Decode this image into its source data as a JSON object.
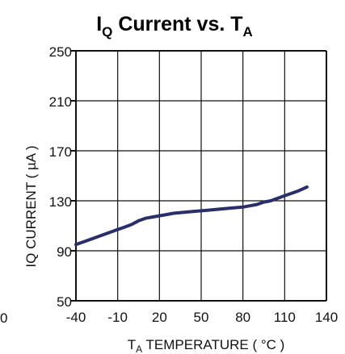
{
  "chart_data": {
    "type": "line",
    "title_parts": {
      "q1": "I",
      "q1_sub": "Q",
      "q2": " Current  vs. T",
      "q2_sub": "A"
    },
    "xlabel_parts": {
      "l1": "T",
      "l1_sub": "A",
      "l2": " TEMPERATURE ( °C )"
    },
    "ylabel": "IQ CURRENT ( µA )",
    "x_ticks": [
      "-40",
      "-10",
      "20",
      "50",
      "80",
      "110",
      "140"
    ],
    "y_ticks": [
      "50",
      "90",
      "130",
      "170",
      "210",
      "250"
    ],
    "xlim": [
      -40,
      140
    ],
    "ylim": [
      50,
      250
    ],
    "grid": true,
    "left_edge_text": "0",
    "color": "#2a2f6b",
    "series": [
      {
        "x": [
          -40,
          -30,
          -20,
          -10,
          -5,
          0,
          5,
          10,
          15,
          20,
          25,
          30,
          40,
          50,
          60,
          70,
          80,
          85,
          90,
          95,
          100,
          110,
          120,
          126
        ],
        "y": [
          95,
          99,
          103,
          107,
          109,
          111,
          114,
          116,
          117,
          118,
          119,
          120,
          121,
          122,
          123,
          124,
          125,
          126,
          127,
          129,
          130,
          134,
          138,
          141
        ]
      }
    ]
  }
}
